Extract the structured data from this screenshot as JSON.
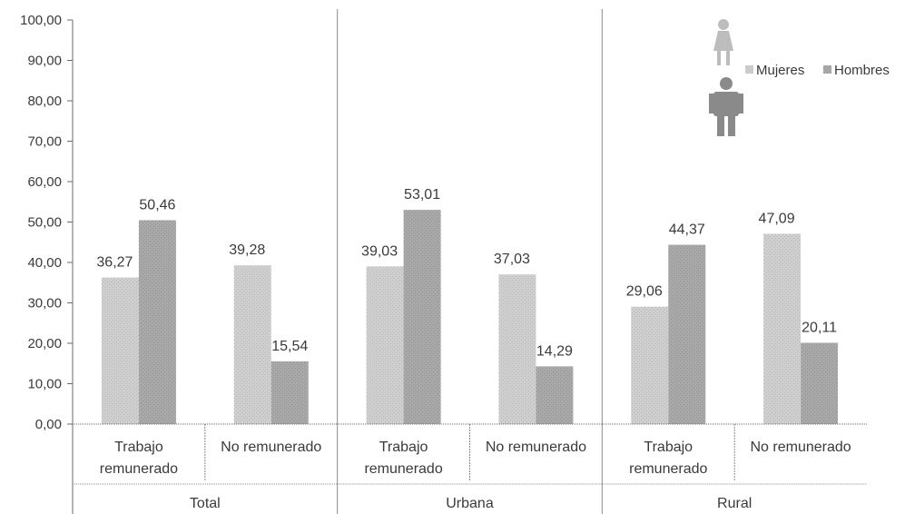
{
  "chart_data": {
    "type": "bar",
    "ylim": [
      0,
      100
    ],
    "y_ticks": [
      "0,00",
      "10,00",
      "20,00",
      "30,00",
      "40,00",
      "50,00",
      "60,00",
      "70,00",
      "80,00",
      "90,00",
      "100,00"
    ],
    "groups": [
      {
        "label": "Total",
        "categories": [
          {
            "label": [
              "Trabajo",
              "remunerado"
            ],
            "values": [
              36.27,
              50.46
            ],
            "labels": [
              "36,27",
              "50,46"
            ]
          },
          {
            "label": [
              "No remunerado"
            ],
            "values": [
              39.28,
              15.54
            ],
            "labels": [
              "39,28",
              "15,54"
            ]
          }
        ]
      },
      {
        "label": "Urbana",
        "categories": [
          {
            "label": [
              "Trabajo",
              "remunerado"
            ],
            "values": [
              39.03,
              53.01
            ],
            "labels": [
              "39,03",
              "53,01"
            ]
          },
          {
            "label": [
              "No remunerado"
            ],
            "values": [
              37.03,
              14.29
            ],
            "labels": [
              "37,03",
              "14,29"
            ]
          }
        ]
      },
      {
        "label": "Rural",
        "categories": [
          {
            "label": [
              "Trabajo",
              "remunerado"
            ],
            "values": [
              29.06,
              44.37
            ],
            "labels": [
              "29,06",
              "44,37"
            ]
          },
          {
            "label": [
              "No remunerado"
            ],
            "values": [
              47.09,
              20.11
            ],
            "labels": [
              "47,09",
              "20,11"
            ]
          }
        ]
      }
    ],
    "series": [
      {
        "name": "Mujeres",
        "color": "#c9c9c9"
      },
      {
        "name": "Hombres",
        "color": "#a6a6a6"
      }
    ],
    "grid": false,
    "legend_position": "top-right"
  },
  "icons": [
    "woman-icon",
    "man-icon"
  ]
}
